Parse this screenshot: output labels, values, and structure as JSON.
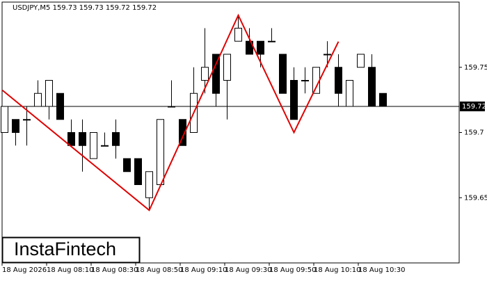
{
  "chart_data": {
    "type": "candlestick",
    "title": "USDJPY,M5  159.73 159.73 159.72 159.72",
    "categories": [
      "18 Aug 2026",
      null,
      null,
      null,
      "18 Aug 08:10",
      null,
      null,
      null,
      "18 Aug 08:30",
      null,
      null,
      null,
      "18 Aug 08:50",
      null,
      null,
      null,
      "18 Aug 09:10",
      null,
      null,
      null,
      "18 Aug 09:30",
      null,
      null,
      null,
      "18 Aug 09:50",
      null,
      null,
      null,
      "18 Aug 10:10",
      null,
      null,
      null,
      "18 Aug 10:30",
      null,
      null
    ],
    "open": [
      159.7,
      159.71,
      159.71,
      159.72,
      159.72,
      159.73,
      159.7,
      159.7,
      159.68,
      159.69,
      159.7,
      159.68,
      159.68,
      159.65,
      159.66,
      159.72,
      159.71,
      159.7,
      159.74,
      159.76,
      159.74,
      159.77,
      159.77,
      159.77,
      159.77,
      159.76,
      159.74,
      159.74,
      159.73,
      159.76,
      159.75,
      159.72,
      159.75,
      159.75,
      159.73
    ],
    "high": [
      159.72,
      159.71,
      159.72,
      159.74,
      159.74,
      159.73,
      159.71,
      159.71,
      159.7,
      159.7,
      159.71,
      159.68,
      159.68,
      159.67,
      159.71,
      159.74,
      159.71,
      159.75,
      159.78,
      159.76,
      159.76,
      159.79,
      159.78,
      159.77,
      159.78,
      159.76,
      159.75,
      159.75,
      159.75,
      159.77,
      159.76,
      159.74,
      159.76,
      159.76,
      159.73
    ],
    "low": [
      159.7,
      159.69,
      159.69,
      159.72,
      159.71,
      159.71,
      159.69,
      159.67,
      159.68,
      159.69,
      159.68,
      159.67,
      159.66,
      159.64,
      159.66,
      159.72,
      159.69,
      159.7,
      159.73,
      159.72,
      159.71,
      159.77,
      159.76,
      159.75,
      159.77,
      159.73,
      159.71,
      159.73,
      159.73,
      159.75,
      159.72,
      159.72,
      159.75,
      159.72,
      159.72
    ],
    "close": [
      159.72,
      159.7,
      159.71,
      159.73,
      159.74,
      159.71,
      159.69,
      159.69,
      159.7,
      159.69,
      159.69,
      159.67,
      159.66,
      159.67,
      159.71,
      159.72,
      159.69,
      159.73,
      159.75,
      159.73,
      159.76,
      159.78,
      159.76,
      159.76,
      159.77,
      159.73,
      159.71,
      159.74,
      159.75,
      159.76,
      159.73,
      159.74,
      159.76,
      159.72,
      159.72
    ],
    "up_color": "#ffffff",
    "down_color": "#000000",
    "pattern": {
      "color": "#e00000",
      "x": [
        -0.19,
        13,
        21,
        26,
        30
      ],
      "y": [
        159.7324,
        159.6404,
        159.7899,
        159.7,
        159.7697
      ]
    },
    "current_price": 159.72,
    "ylim": [
      159.6,
      159.8
    ],
    "yticks": [
      159.65,
      159.7,
      159.75
    ],
    "logo": "InstaFintech"
  }
}
